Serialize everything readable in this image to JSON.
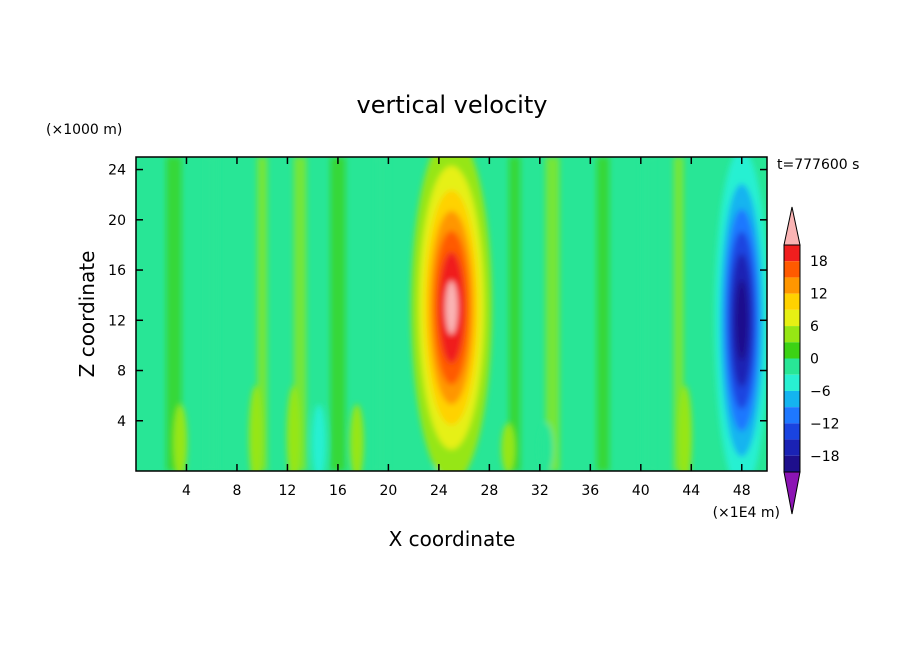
{
  "chart_data": {
    "type": "heatmap",
    "title": "vertical velocity",
    "xlabel": "X coordinate",
    "ylabel": "Z coordinate",
    "x_unit": "(×1E4 m)",
    "y_unit": "(×1000 m)",
    "time_label": "t=777600 s",
    "xlim": [
      0,
      50
    ],
    "ylim": [
      0,
      25
    ],
    "x_ticks": [
      4,
      8,
      12,
      16,
      20,
      24,
      28,
      32,
      36,
      40,
      44,
      48
    ],
    "y_ticks": [
      4,
      8,
      12,
      16,
      20,
      24
    ],
    "x_tick_labels": [
      "4",
      "8",
      "12",
      "16",
      "20",
      "24",
      "28",
      "32",
      "36",
      "40",
      "44",
      "48"
    ],
    "y_tick_labels": [
      "4",
      "8",
      "12",
      "16",
      "20",
      "24"
    ],
    "colorbar": {
      "levels": [
        -21,
        -18,
        -15,
        -12,
        -9,
        -6,
        -3,
        0,
        3,
        6,
        9,
        12,
        15,
        18,
        21
      ],
      "colors": [
        "#5a0f9c",
        "#1e0f8c",
        "#1a22b4",
        "#1a44e0",
        "#1e78ff",
        "#14b4f0",
        "#28f0d2",
        "#28e696",
        "#3cd214",
        "#96e614",
        "#e6f014",
        "#ffd200",
        "#ff9600",
        "#ff5a00",
        "#f01e1e",
        "#fa6e6e"
      ],
      "under_color": "#8c14b4",
      "over_color": "#fab4b4",
      "tick_values": [
        18,
        12,
        6,
        0,
        -6,
        -12,
        -18
      ],
      "tick_labels": [
        "18",
        "12",
        "6",
        "0",
        "−6",
        "−12",
        "−18"
      ]
    },
    "features": [
      {
        "name": "updraft",
        "x_center": 25,
        "z_center": 13,
        "peak": 22,
        "x_sigma": 1.6,
        "z_sigma": 7
      },
      {
        "name": "downdraft",
        "x_center": 48,
        "z_center": 12,
        "peak": -20,
        "x_sigma": 1.1,
        "z_sigma": 7
      }
    ]
  }
}
